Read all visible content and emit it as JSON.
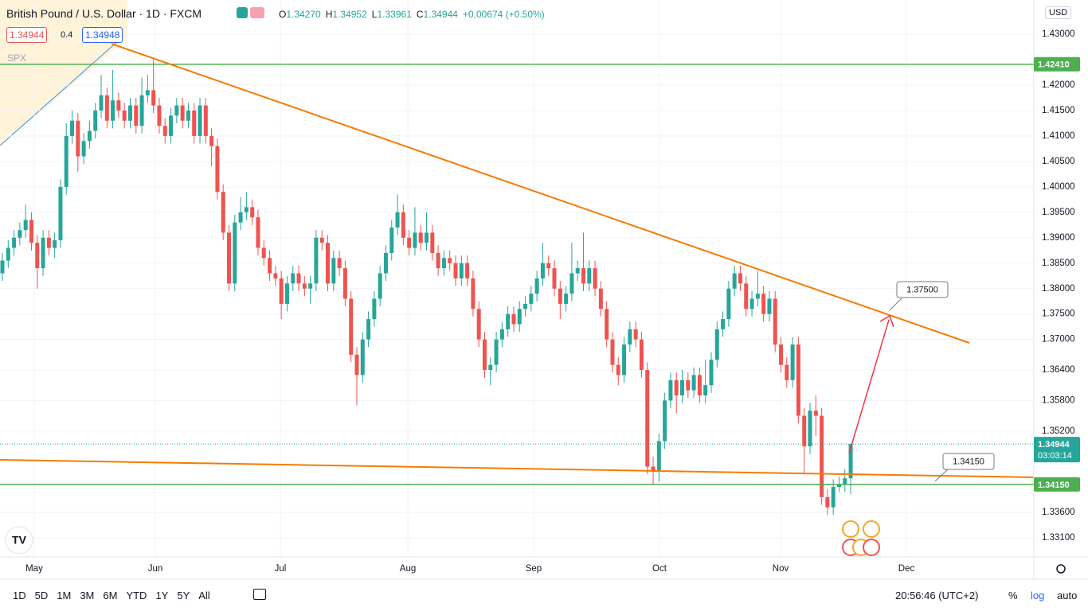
{
  "header": {
    "symbol": "British Pound / U.S. Dollar · 1D · FXCM",
    "ohlc": [
      {
        "key": "O",
        "value": "1.34270"
      },
      {
        "key": "H",
        "value": "1.34952"
      },
      {
        "key": "L",
        "value": "1.33961"
      },
      {
        "key": "C",
        "value": "1.34944"
      }
    ],
    "change": "+0.00674 (+0.50%)"
  },
  "order": {
    "sell": "1.34944",
    "spread": "0.4",
    "buy": "1.34948"
  },
  "compare": "SPX",
  "currency": "USD",
  "chart_data": {
    "type": "candlestick",
    "open": [
      1.383,
      1.3855,
      1.388,
      1.39,
      1.3915,
      1.3935,
      1.389,
      1.384,
      1.39,
      1.388,
      1.3895,
      1.4,
      1.41,
      1.413,
      1.406,
      1.409,
      1.411,
      1.415,
      1.418,
      1.413,
      1.417,
      1.415,
      1.413,
      1.416,
      1.412,
      1.418,
      1.419,
      1.416,
      1.412,
      1.41,
      1.414,
      1.416,
      1.413,
      1.415,
      1.41,
      1.416,
      1.41,
      1.408,
      1.399,
      1.391,
      1.381,
      1.393,
      1.395,
      1.396,
      1.394,
      1.388,
      1.386,
      1.383,
      1.382,
      1.377,
      1.381,
      1.383,
      1.381,
      1.38,
      1.381,
      1.39,
      1.389,
      1.381,
      1.386,
      1.384,
      1.378,
      1.367,
      1.363,
      1.37,
      1.374,
      1.378,
      1.383,
      1.387,
      1.392,
      1.395,
      1.39,
      1.388,
      1.391,
      1.389,
      1.391,
      1.387,
      1.384,
      1.386,
      1.385,
      1.382,
      1.385,
      1.382,
      1.376,
      1.37,
      1.364,
      1.365,
      1.37,
      1.372,
      1.375,
      1.373,
      1.376,
      1.377,
      1.379,
      1.382,
      1.385,
      1.384,
      1.38,
      1.377,
      1.379,
      1.383,
      1.384,
      1.381,
      1.384,
      1.38,
      1.376,
      1.37,
      1.365,
      1.363,
      1.369,
      1.372,
      1.37,
      1.364,
      1.345,
      1.344,
      1.35,
      1.358,
      1.362,
      1.359,
      1.362,
      1.36,
      1.363,
      1.359,
      1.361,
      1.366,
      1.372,
      1.374,
      1.38,
      1.383,
      1.381,
      1.376,
      1.378,
      1.379,
      1.375,
      1.378,
      1.369,
      1.365,
      1.362,
      1.369,
      1.355,
      1.349,
      1.356,
      1.355,
      1.339,
      1.337,
      1.341,
      1.3415,
      1.3427
    ],
    "high": [
      1.387,
      1.3895,
      1.3915,
      1.393,
      1.3965,
      1.395,
      1.3905,
      1.3915,
      1.3915,
      1.391,
      1.4015,
      1.4125,
      1.415,
      1.4145,
      1.4105,
      1.413,
      1.4165,
      1.422,
      1.4195,
      1.423,
      1.4185,
      1.4165,
      1.4175,
      1.4175,
      1.4215,
      1.422,
      1.425,
      1.4175,
      1.4135,
      1.4155,
      1.4175,
      1.4175,
      1.4165,
      1.4165,
      1.4175,
      1.4175,
      1.4115,
      1.4095,
      1.4005,
      1.3925,
      1.3945,
      1.398,
      1.399,
      1.3975,
      1.3955,
      1.3895,
      1.3875,
      1.3845,
      1.3835,
      1.3825,
      1.3845,
      1.3845,
      1.3825,
      1.3825,
      1.3915,
      1.3915,
      1.3905,
      1.3875,
      1.3875,
      1.3855,
      1.3795,
      1.3685,
      1.3715,
      1.3755,
      1.3795,
      1.3845,
      1.3885,
      1.3935,
      1.3985,
      1.3965,
      1.3915,
      1.396,
      1.3925,
      1.395,
      1.3925,
      1.3885,
      1.3875,
      1.3875,
      1.3865,
      1.3865,
      1.3865,
      1.3835,
      1.3775,
      1.3715,
      1.3665,
      1.3715,
      1.3735,
      1.3765,
      1.3765,
      1.3775,
      1.3785,
      1.3805,
      1.3835,
      1.389,
      1.3865,
      1.3855,
      1.3815,
      1.3805,
      1.389,
      1.3855,
      1.391,
      1.3855,
      1.3855,
      1.3815,
      1.3775,
      1.3715,
      1.3665,
      1.3705,
      1.3735,
      1.3735,
      1.3715,
      1.3655,
      1.347,
      1.3515,
      1.3595,
      1.3635,
      1.3635,
      1.364,
      1.3635,
      1.3645,
      1.3645,
      1.366,
      1.3675,
      1.3735,
      1.3755,
      1.3815,
      1.3845,
      1.3845,
      1.3825,
      1.3795,
      1.3835,
      1.3805,
      1.3795,
      1.3795,
      1.3705,
      1.3665,
      1.3705,
      1.3705,
      1.3565,
      1.3575,
      1.359,
      1.3565,
      1.3405,
      1.3425,
      1.343,
      1.3445,
      1.34952
    ],
    "low": [
      1.3815,
      1.384,
      1.3865,
      1.3885,
      1.39,
      1.3875,
      1.38,
      1.3825,
      1.3865,
      1.386,
      1.388,
      1.3985,
      1.4085,
      1.403,
      1.4045,
      1.4075,
      1.4095,
      1.4135,
      1.4115,
      1.4115,
      1.4135,
      1.4115,
      1.4115,
      1.4105,
      1.4105,
      1.4165,
      1.4145,
      1.4105,
      1.4085,
      1.4085,
      1.4125,
      1.4115,
      1.4115,
      1.4085,
      1.4085,
      1.4085,
      1.404,
      1.3975,
      1.3895,
      1.3795,
      1.3795,
      1.3915,
      1.3935,
      1.3925,
      1.3865,
      1.3845,
      1.3815,
      1.3805,
      1.374,
      1.3755,
      1.3795,
      1.3795,
      1.3785,
      1.377,
      1.3795,
      1.3875,
      1.3795,
      1.3795,
      1.3825,
      1.3765,
      1.3655,
      1.357,
      1.3615,
      1.3685,
      1.3725,
      1.3765,
      1.3815,
      1.3855,
      1.3905,
      1.3885,
      1.3865,
      1.3865,
      1.3875,
      1.3875,
      1.3855,
      1.3825,
      1.3825,
      1.3835,
      1.3805,
      1.3805,
      1.3805,
      1.3745,
      1.3685,
      1.3625,
      1.361,
      1.3635,
      1.3685,
      1.3705,
      1.3715,
      1.3715,
      1.3745,
      1.3755,
      1.3775,
      1.3805,
      1.3825,
      1.3785,
      1.374,
      1.3755,
      1.3775,
      1.3815,
      1.3795,
      1.3795,
      1.3785,
      1.3745,
      1.3685,
      1.3635,
      1.361,
      1.3615,
      1.3675,
      1.3685,
      1.3625,
      1.3435,
      1.3415,
      1.342,
      1.3485,
      1.3565,
      1.3555,
      1.3575,
      1.3585,
      1.3585,
      1.3575,
      1.3575,
      1.3595,
      1.3645,
      1.3705,
      1.3725,
      1.3785,
      1.3795,
      1.3745,
      1.3745,
      1.3765,
      1.3735,
      1.3735,
      1.3675,
      1.3635,
      1.3605,
      1.3605,
      1.3535,
      1.3435,
      1.3475,
      1.351,
      1.3375,
      1.3355,
      1.3355,
      1.34,
      1.34,
      1.33961
    ],
    "close": [
      1.3855,
      1.388,
      1.39,
      1.3915,
      1.3935,
      1.389,
      1.384,
      1.39,
      1.388,
      1.3895,
      1.4,
      1.41,
      1.413,
      1.406,
      1.409,
      1.411,
      1.415,
      1.418,
      1.413,
      1.417,
      1.415,
      1.413,
      1.416,
      1.412,
      1.418,
      1.419,
      1.416,
      1.412,
      1.41,
      1.414,
      1.416,
      1.413,
      1.415,
      1.41,
      1.416,
      1.41,
      1.408,
      1.399,
      1.391,
      1.381,
      1.393,
      1.395,
      1.396,
      1.394,
      1.388,
      1.386,
      1.383,
      1.382,
      1.377,
      1.381,
      1.383,
      1.381,
      1.38,
      1.381,
      1.39,
      1.389,
      1.381,
      1.386,
      1.384,
      1.378,
      1.367,
      1.363,
      1.37,
      1.374,
      1.378,
      1.383,
      1.387,
      1.392,
      1.395,
      1.39,
      1.388,
      1.391,
      1.389,
      1.391,
      1.387,
      1.384,
      1.386,
      1.385,
      1.382,
      1.385,
      1.382,
      1.376,
      1.37,
      1.364,
      1.365,
      1.37,
      1.372,
      1.375,
      1.373,
      1.376,
      1.377,
      1.379,
      1.382,
      1.385,
      1.384,
      1.38,
      1.377,
      1.379,
      1.383,
      1.384,
      1.381,
      1.384,
      1.38,
      1.376,
      1.37,
      1.365,
      1.363,
      1.369,
      1.372,
      1.37,
      1.364,
      1.345,
      1.344,
      1.35,
      1.358,
      1.362,
      1.359,
      1.362,
      1.36,
      1.363,
      1.359,
      1.361,
      1.366,
      1.372,
      1.374,
      1.38,
      1.383,
      1.381,
      1.376,
      1.378,
      1.379,
      1.375,
      1.378,
      1.369,
      1.365,
      1.362,
      1.369,
      1.355,
      1.349,
      1.356,
      1.355,
      1.339,
      1.337,
      1.341,
      1.3415,
      1.3427,
      1.34944
    ],
    "up_color": "#26a69a",
    "down_color": "#ef5350",
    "xlim": [
      -0.411,
      177.52
    ],
    "xticks": [
      {
        "value": 5.48,
        "label": "May"
      },
      {
        "value": 26.32,
        "label": "Jun"
      },
      {
        "value": 47.84,
        "label": "Jul"
      },
      {
        "value": 69.78,
        "label": "Aug"
      },
      {
        "value": 91.43,
        "label": "Sep"
      },
      {
        "value": 113.09,
        "label": "Oct"
      },
      {
        "value": 133.93,
        "label": "Nov"
      },
      {
        "value": 155.59,
        "label": "Dec"
      }
    ],
    "ylim": [
      1.32725,
      1.43673
    ],
    "yticks": [
      {
        "value": 1.43,
        "label": "1.43000"
      },
      {
        "value": 1.42,
        "label": "1.42000"
      },
      {
        "value": 1.415,
        "label": "1.41500"
      },
      {
        "value": 1.41,
        "label": "1.41000"
      },
      {
        "value": 1.405,
        "label": "1.40500"
      },
      {
        "value": 1.4,
        "label": "1.40000"
      },
      {
        "value": 1.395,
        "label": "1.39500"
      },
      {
        "value": 1.39,
        "label": "1.39000"
      },
      {
        "value": 1.385,
        "label": "1.38500"
      },
      {
        "value": 1.38,
        "label": "1.38000"
      },
      {
        "value": 1.375,
        "label": "1.37500"
      },
      {
        "value": 1.37,
        "label": "1.37000"
      },
      {
        "value": 1.364,
        "label": "1.36400"
      },
      {
        "value": 1.358,
        "label": "1.35800"
      },
      {
        "value": 1.352,
        "label": "1.35200"
      },
      {
        "value": 1.336,
        "label": "1.33600"
      },
      {
        "value": 1.331,
        "label": "1.33100"
      }
    ],
    "grid": true,
    "levels": [
      {
        "value": 1.4241,
        "label": "1.42410",
        "color": "#4caf50"
      },
      {
        "value": 1.3415,
        "label": "1.34150",
        "color": "#4caf50"
      }
    ],
    "last_label": "1.34944",
    "countdown": "03:03:14",
    "callouts": [
      "1.37500",
      "1.34150"
    ]
  },
  "toolbar": {
    "ranges": [
      "1D",
      "5D",
      "1M",
      "3M",
      "6M",
      "YTD",
      "1Y",
      "5Y",
      "All"
    ],
    "time": "20:56:46 (UTC+2)",
    "percent": "%",
    "log": "log",
    "auto": "auto"
  }
}
